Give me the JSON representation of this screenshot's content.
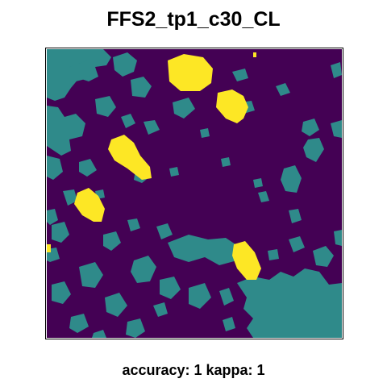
{
  "title": "FFS2_tp1_c30_CL",
  "caption": "accuracy: 1 kappa: 1",
  "classification_map": {
    "legend_visible": false,
    "class_colors": {
      "background": "#440154",
      "class_teal": "#2f8a8a",
      "class_yellow": "#fde725"
    }
  }
}
